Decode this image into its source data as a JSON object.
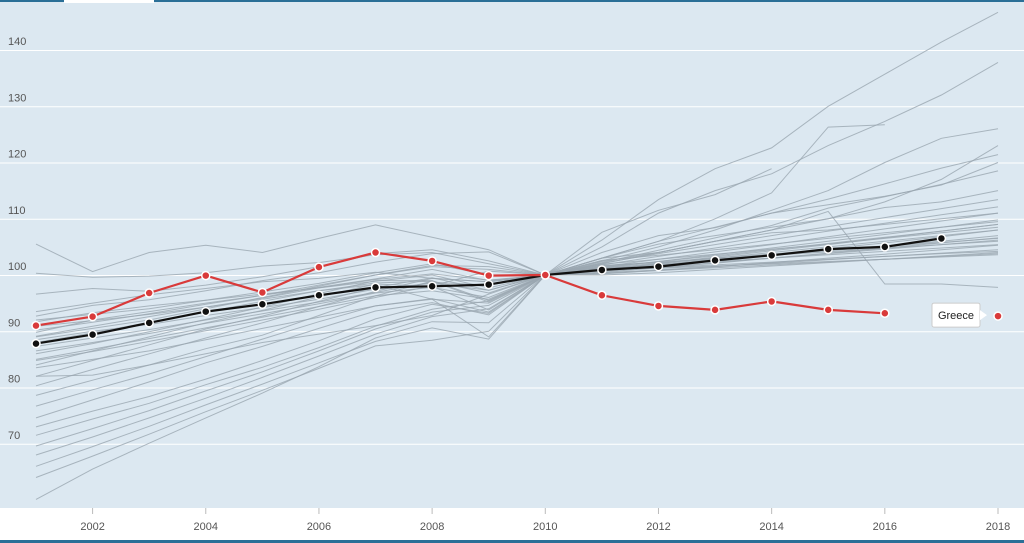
{
  "chart_data": {
    "type": "line",
    "title": "",
    "xlabel": "",
    "ylabel": "",
    "xlim": [
      2001,
      2018
    ],
    "ylim": [
      60,
      148
    ],
    "x_ticks": [
      2002,
      2004,
      2006,
      2008,
      2010,
      2012,
      2014,
      2016,
      2018
    ],
    "y_ticks": [
      70,
      80,
      90,
      100,
      110,
      120,
      130,
      140
    ],
    "grid": true,
    "colors": {
      "background": "#dce8f1",
      "gridline": "#ffffff",
      "background_series": "#9aa6b0",
      "average": "#111111",
      "highlight": "#d93a3a",
      "top_bar": "#2a6f97"
    },
    "tooltip": {
      "series": "Greece",
      "label": "Greece"
    },
    "x": [
      2001,
      2002,
      2003,
      2004,
      2005,
      2006,
      2007,
      2008,
      2009,
      2010,
      2011,
      2012,
      2013,
      2014,
      2015,
      2016,
      2017,
      2018
    ],
    "series": [
      {
        "name": "Greece",
        "role": "highlight",
        "values": [
          91,
          92.6,
          96.8,
          99.9,
          96.9,
          101.4,
          104,
          102.5,
          99.9,
          100,
          96.4,
          94.5,
          93.8,
          95.3,
          93.8,
          93.2,
          null,
          92.7
        ]
      },
      {
        "name": "",
        "role": "average",
        "values": [
          87.8,
          89.4,
          91.5,
          93.5,
          94.8,
          96.4,
          97.8,
          98,
          98.3,
          100,
          100.9,
          101.5,
          102.6,
          103.5,
          104.6,
          105,
          106.5,
          null
        ]
      },
      {
        "role": "background",
        "values": [
          105.5,
          100.6,
          104,
          105.3,
          104,
          106.5,
          108.9,
          106.7,
          104.5,
          100,
          104,
          107,
          108.4,
          111,
          112.5,
          114,
          116,
          120
        ]
      },
      {
        "role": "background",
        "values": [
          100.3,
          99.6,
          99.8,
          100.4,
          101.6,
          102.2,
          103.6,
          104,
          102,
          100,
          103,
          104,
          106,
          107.5,
          108,
          109,
          110,
          111
        ]
      },
      {
        "role": "background",
        "values": [
          96.6,
          97.6,
          97.1,
          98.2,
          99.7,
          101.5,
          103.8,
          104.5,
          102.5,
          100,
          103,
          105.5,
          107,
          108.5,
          110,
          112,
          113,
          115
        ]
      },
      {
        "role": "background",
        "values": [
          92.7,
          94.6,
          95.6,
          97.2,
          99,
          100.4,
          102.3,
          103.8,
          104.1,
          100,
          102,
          104,
          106,
          108,
          110,
          113,
          117,
          123
        ]
      },
      {
        "role": "background",
        "values": [
          90.9,
          91.9,
          93,
          94.3,
          95.9,
          97.7,
          99.2,
          100.2,
          99.1,
          100,
          106.2,
          113.4,
          118.9,
          122.6,
          130,
          135.7,
          141.4,
          146.7
        ]
      },
      {
        "role": "background",
        "values": [
          89.1,
          90.9,
          92.6,
          94.3,
          95.7,
          97.2,
          98.6,
          98.9,
          96.8,
          100,
          105,
          111,
          115,
          118,
          123,
          127.3,
          132,
          137.8
        ]
      },
      {
        "role": "background",
        "values": [
          88,
          89.7,
          91.6,
          93.4,
          95.3,
          97.2,
          98.3,
          95.7,
          89,
          100,
          107.6,
          111.5,
          114.3,
          118.9,
          null,
          null,
          null,
          null
        ]
      },
      {
        "role": "background",
        "values": [
          86,
          87.8,
          89.9,
          92.1,
          94.3,
          96.7,
          99,
          99,
          95.5,
          100,
          103,
          106,
          110,
          114.6,
          126.3,
          126.7,
          null,
          null
        ]
      },
      {
        "role": "background",
        "values": [
          84,
          86.5,
          89,
          91.5,
          93.7,
          96.1,
          98.4,
          98,
          93.8,
          100,
          102.5,
          105,
          108,
          111.5,
          115,
          120,
          124.3,
          126
        ]
      },
      {
        "role": "background",
        "values": [
          82,
          84.8,
          87.6,
          90.4,
          92.7,
          95.3,
          97.8,
          99.5,
          97.3,
          100,
          102.4,
          104,
          106,
          108,
          111.3,
          98.4,
          98.4,
          97.8
        ]
      },
      {
        "role": "background",
        "values": [
          80.3,
          83.2,
          86,
          88.8,
          91.5,
          94.4,
          97.1,
          99.4,
          98.8,
          100,
          103,
          106,
          108.5,
          111,
          113.5,
          116.2,
          119,
          121.4
        ]
      },
      {
        "role": "background",
        "values": [
          78.6,
          81.3,
          84,
          86.9,
          89.3,
          92.8,
          96.3,
          98.9,
          95.2,
          100,
          102.2,
          104.4,
          106.6,
          108.8,
          111.9,
          113.9,
          116.1,
          118.5
        ]
      },
      {
        "role": "background",
        "values": [
          76.7,
          79.6,
          82.4,
          85.5,
          88.6,
          91.7,
          94.5,
          95.8,
          93.4,
          100,
          102.1,
          103.8,
          105.4,
          107,
          108.6,
          110.2,
          111.8,
          113.4
        ]
      },
      {
        "role": "background",
        "values": [
          74.6,
          77.8,
          81,
          84.4,
          87.3,
          90.5,
          93.6,
          95.1,
          92.9,
          100,
          101.8,
          103.3,
          104.8,
          106.3,
          107.8,
          109.2,
          110.7,
          112.1
        ]
      },
      {
        "role": "background",
        "values": [
          73,
          75.8,
          78.4,
          81.5,
          84.8,
          88.3,
          92.2,
          94.8,
          93.2,
          100,
          101.5,
          102.8,
          104.1,
          105.4,
          106.8,
          108.2,
          109.6,
          111
        ]
      },
      {
        "role": "background",
        "values": [
          71.5,
          74.4,
          77.2,
          80.5,
          83.6,
          87.1,
          90.9,
          93.9,
          95.4,
          100,
          101.3,
          102.4,
          103.6,
          104.8,
          106,
          107.2,
          108.5,
          109.8
        ]
      },
      {
        "role": "background",
        "values": [
          69.6,
          72.7,
          75.9,
          79.4,
          82.8,
          86.5,
          90.4,
          93.4,
          94.6,
          100,
          101,
          102,
          103.2,
          104.3,
          105.4,
          106.6,
          107.8,
          109
        ]
      },
      {
        "role": "background",
        "values": [
          68,
          71.2,
          74.6,
          78.1,
          81.8,
          85.6,
          89.5,
          92.6,
          94,
          100,
          100.8,
          101.7,
          102.7,
          103.7,
          104.7,
          105.7,
          106.8,
          108
        ]
      },
      {
        "role": "background",
        "values": [
          66,
          69.5,
          73.1,
          76.9,
          80.6,
          84.4,
          88.2,
          90.6,
          88.6,
          100,
          100.5,
          101.3,
          102.1,
          103,
          103.9,
          104.8,
          105.7,
          106.6
        ]
      },
      {
        "role": "background",
        "values": [
          64,
          67.8,
          71.7,
          75.7,
          79.5,
          83.4,
          87.4,
          88.4,
          90,
          100,
          100.2,
          100.8,
          101.5,
          102.2,
          103,
          103.7,
          104.5,
          105.3
        ]
      },
      {
        "role": "background",
        "values": [
          60.1,
          65.5,
          70.1,
          74.6,
          79,
          83.7,
          88.8,
          91.7,
          91.5,
          100,
          100,
          100.4,
          101,
          101.6,
          102.2,
          102.8,
          103.4,
          104
        ]
      },
      {
        "role": "background",
        "values": [
          83.5,
          85,
          86.5,
          88.5,
          90.5,
          92.5,
          94.5,
          95.7,
          95,
          100,
          101.7,
          102.2,
          102.8,
          103.5,
          104.1,
          104.8,
          105.4,
          106
        ]
      },
      {
        "role": "background",
        "values": [
          82,
          82.2,
          84,
          86,
          88,
          89.5,
          91,
          92.8,
          96.6,
          100,
          101.2,
          101.3,
          101.8,
          102.3,
          102.8,
          103.3,
          103.8,
          104.2
        ]
      },
      {
        "role": "background",
        "values": [
          93.5,
          95,
          96.5,
          97.6,
          98.8,
          99.4,
          100.5,
          99.4,
          98.8,
          100,
          100.9,
          101.2,
          101.6,
          102,
          102.4,
          102.8,
          103.2,
          103.6
        ]
      },
      {
        "role": "background",
        "values": [
          91.7,
          93.3,
          94.5,
          95.5,
          96.6,
          97.7,
          98.9,
          100,
          97.7,
          100,
          101.6,
          102.3,
          103,
          103.7,
          104.4,
          105.1,
          105.8,
          106.5
        ]
      },
      {
        "role": "background",
        "values": [
          89.8,
          92,
          93.5,
          95,
          96.4,
          97.8,
          99.3,
          101,
          99,
          100,
          102.6,
          103.5,
          104.5,
          105.5,
          106.5,
          107.5,
          108.5,
          109.5
        ]
      },
      {
        "role": "background",
        "values": [
          89,
          90.5,
          92,
          94,
          96,
          98,
          100,
          101.5,
          101,
          100,
          101.9,
          102.8,
          103.7,
          104.6,
          105.5,
          106.5,
          107.5,
          108.5
        ]
      },
      {
        "role": "background",
        "values": [
          88.5,
          90,
          91.2,
          92.8,
          94.2,
          95.7,
          97.5,
          98.5,
          97.3,
          100,
          101.4,
          102.4,
          103.4,
          104.5,
          105.6,
          106.7,
          107.8,
          109
        ]
      },
      {
        "role": "background",
        "values": [
          87.3,
          88.8,
          90.3,
          92,
          93.6,
          95.2,
          96.9,
          98.7,
          98.2,
          100,
          101.1,
          101.9,
          102.7,
          103.5,
          104.3,
          105.2,
          106,
          107
        ]
      },
      {
        "role": "background",
        "values": [
          86.5,
          88,
          89.6,
          91.4,
          93.1,
          94.9,
          96.8,
          97.8,
          96,
          100,
          101.3,
          102.1,
          103,
          104,
          105,
          106,
          107,
          108
        ]
      },
      {
        "role": "background",
        "values": [
          85,
          86.8,
          88.7,
          90.6,
          92.5,
          94.4,
          96.3,
          97.2,
          95.7,
          100,
          100.7,
          101.4,
          102.2,
          103,
          103.8,
          104.6,
          105.4,
          106.2
        ]
      },
      {
        "role": "background",
        "values": [
          84.8,
          86.4,
          88.2,
          90.1,
          92,
          93.9,
          96,
          98.1,
          100.7,
          100,
          100.4,
          100.9,
          101.5,
          102.1,
          102.7,
          103.3,
          103.9,
          104.5
        ]
      },
      {
        "role": "background",
        "values": [
          92,
          93,
          94,
          95.5,
          97,
          98.5,
          100.4,
          102,
          100,
          100,
          101.2,
          101.8,
          102.4,
          103,
          103.6,
          104.2,
          104.8,
          105.4
        ]
      },
      {
        "role": "background",
        "values": [
          90.2,
          91.6,
          93.1,
          94.8,
          96.4,
          98.2,
          100,
          101.7,
          101.5,
          100,
          100.3,
          100.8,
          101.3,
          101.8,
          102.3,
          102.8,
          103.3,
          103.8
        ]
      }
    ]
  }
}
